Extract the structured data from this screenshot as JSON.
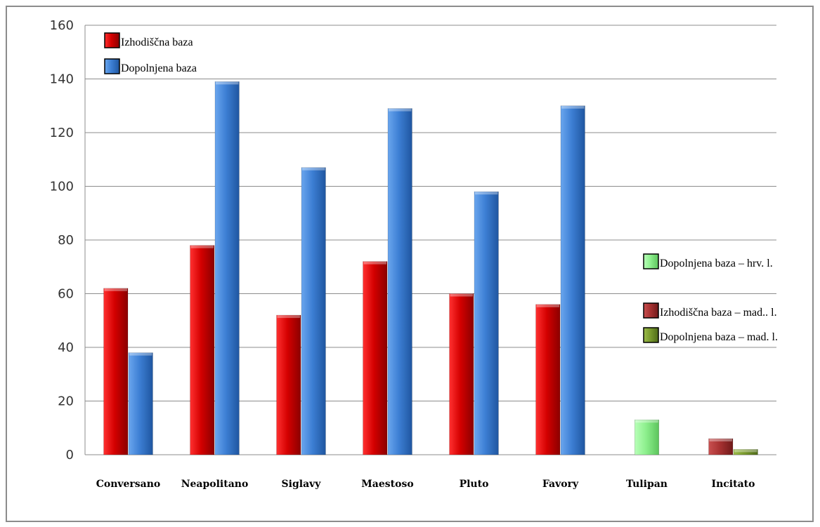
{
  "chart_data": {
    "type": "bar",
    "categories": [
      "Conversano",
      "Neapolitano",
      "Siglavy",
      "Maestoso",
      "Pluto",
      "Favory",
      "Tulipan",
      "Incitato"
    ],
    "series": [
      {
        "name": "Izhodiščna baza",
        "color": "#d40000",
        "values": [
          62,
          78,
          52,
          72,
          60,
          56,
          null,
          null
        ]
      },
      {
        "name": "Dopolnjena baza",
        "color": "#3d7fd4",
        "values": [
          38,
          139,
          107,
          129,
          98,
          130,
          null,
          null
        ]
      },
      {
        "name": "Dopolnjena baza – hrv. l.",
        "color": "#8ef08e",
        "values": [
          null,
          null,
          null,
          null,
          null,
          null,
          13,
          null
        ]
      },
      {
        "name": "Izhodiščna baza – mad.. l.",
        "color": "#a83232",
        "values": [
          null,
          null,
          null,
          null,
          null,
          null,
          null,
          6
        ]
      },
      {
        "name": "Dopolnjena baza – mad. l.",
        "color": "#7a9a2e",
        "values": [
          null,
          null,
          null,
          null,
          null,
          null,
          null,
          2
        ]
      }
    ],
    "y_ticks": [
      "0",
      "20",
      "40",
      "60",
      "80",
      "100",
      "120",
      "140",
      "160"
    ],
    "ylim": [
      0,
      160
    ],
    "grid": true,
    "legend": [
      {
        "label": "Izhodiščna baza",
        "position": "top-left"
      },
      {
        "label": "Dopolnjena baza",
        "position": "top-left"
      },
      {
        "label": "Dopolnjena baza – hrv. l.",
        "position": "right"
      },
      {
        "label": "Izhodiščna baza – mad.. l.",
        "position": "right"
      },
      {
        "label": "Dopolnjena baza – mad. l.",
        "position": "right"
      }
    ]
  }
}
